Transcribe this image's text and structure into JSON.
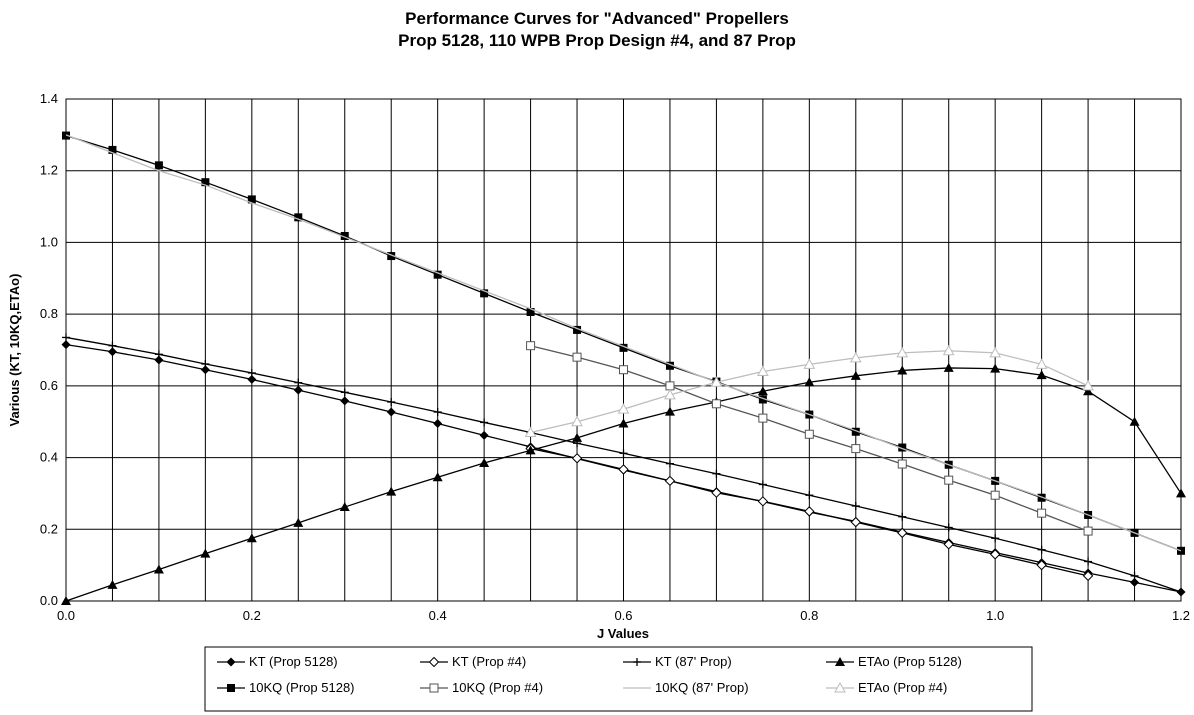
{
  "chart_data": {
    "type": "line",
    "title": "Performance Curves for \"Advanced\" Propellers",
    "subtitle": "Prop 5128, 110 WPB Prop Design #4, and 87 Prop",
    "xlabel": "J Values",
    "ylabel": "Various (KT, 10KQ,ETAo)",
    "xlim": [
      0,
      1.2
    ],
    "ylim": [
      0,
      1.4
    ],
    "x_ticks": [
      "0.0",
      "0.2",
      "0.4",
      "0.6",
      "0.8",
      "1.0",
      "1.2"
    ],
    "y_ticks": [
      "0.0",
      "0.2",
      "0.4",
      "0.6",
      "0.8",
      "1.0",
      "1.2",
      "1.4"
    ],
    "grid": true,
    "legend_position": "bottom",
    "series": [
      {
        "name": "KT (Prop 5128)",
        "color": "#000000",
        "marker": "diamond-filled",
        "line": "solid",
        "x": [
          0,
          0.05,
          0.1,
          0.15,
          0.2,
          0.25,
          0.3,
          0.35,
          0.4,
          0.45,
          0.5,
          0.55,
          0.6,
          0.65,
          0.7,
          0.75,
          0.8,
          0.85,
          0.9,
          0.95,
          1.0,
          1.05,
          1.1,
          1.15,
          1.2
        ],
        "y": [
          0.715,
          0.695,
          0.672,
          0.645,
          0.618,
          0.588,
          0.558,
          0.527,
          0.495,
          0.462,
          0.43,
          0.397,
          0.365,
          0.335,
          0.305,
          0.277,
          0.248,
          0.222,
          0.192,
          0.163,
          0.135,
          0.107,
          0.078,
          0.052,
          0.025
        ]
      },
      {
        "name": "KT (Prop #4)",
        "color": "#000000",
        "marker": "diamond-open",
        "line": "solid",
        "x": [
          0.5,
          0.55,
          0.6,
          0.65,
          0.7,
          0.75,
          0.8,
          0.85,
          0.9,
          0.95,
          1.0,
          1.05,
          1.1
        ],
        "y": [
          0.425,
          0.398,
          0.367,
          0.335,
          0.302,
          0.278,
          0.25,
          0.22,
          0.19,
          0.158,
          0.13,
          0.1,
          0.07
        ]
      },
      {
        "name": "KT (87' Prop)",
        "color": "#000000",
        "marker": "plus",
        "line": "solid",
        "x": [
          0,
          0.05,
          0.1,
          0.15,
          0.2,
          0.25,
          0.3,
          0.35,
          0.4,
          0.45,
          0.5,
          0.55,
          0.6,
          0.65,
          0.7,
          0.75,
          0.8,
          0.85,
          0.9,
          0.95,
          1.0,
          1.05,
          1.1,
          1.15,
          1.2
        ],
        "y": [
          0.735,
          0.712,
          0.688,
          0.661,
          0.636,
          0.609,
          0.582,
          0.555,
          0.527,
          0.498,
          0.47,
          0.44,
          0.412,
          0.383,
          0.355,
          0.325,
          0.295,
          0.265,
          0.235,
          0.205,
          0.175,
          0.143,
          0.11,
          0.07,
          0.025
        ]
      },
      {
        "name": "ETAo (Prop 5128)",
        "color": "#000000",
        "marker": "triangle-filled",
        "line": "solid",
        "x": [
          0,
          0.05,
          0.1,
          0.15,
          0.2,
          0.25,
          0.3,
          0.35,
          0.4,
          0.45,
          0.5,
          0.55,
          0.6,
          0.65,
          0.7,
          0.75,
          0.8,
          0.85,
          0.9,
          0.95,
          1.0,
          1.05,
          1.1,
          1.15,
          1.2
        ],
        "y": [
          0.0,
          0.045,
          0.088,
          0.132,
          0.175,
          0.218,
          0.262,
          0.305,
          0.345,
          0.385,
          0.42,
          0.455,
          0.495,
          0.528,
          0.555,
          0.585,
          0.61,
          0.628,
          0.643,
          0.65,
          0.648,
          0.63,
          0.585,
          0.5,
          0.3
        ]
      },
      {
        "name": "10KQ (Prop 5128)",
        "color": "#000000",
        "marker": "square-filled",
        "line": "solid",
        "x": [
          0,
          0.05,
          0.1,
          0.15,
          0.2,
          0.25,
          0.3,
          0.35,
          0.4,
          0.45,
          0.5,
          0.55,
          0.6,
          0.65,
          0.7,
          0.75,
          0.8,
          0.85,
          0.9,
          0.95,
          1.0,
          1.05,
          1.1,
          1.15,
          1.2
        ],
        "y": [
          1.298,
          1.258,
          1.215,
          1.168,
          1.12,
          1.07,
          1.018,
          0.962,
          0.91,
          0.858,
          0.806,
          0.756,
          0.706,
          0.656,
          0.612,
          0.562,
          0.52,
          0.472,
          0.428,
          0.38,
          0.335,
          0.288,
          0.24,
          0.19,
          0.14
        ]
      },
      {
        "name": "10KQ (Prop #4)",
        "color": "#555555",
        "marker": "square-open",
        "line": "solid",
        "x": [
          0.5,
          0.55,
          0.6,
          0.65,
          0.7,
          0.75,
          0.8,
          0.85,
          0.9,
          0.95,
          1.0,
          1.05,
          1.1
        ],
        "y": [
          0.712,
          0.68,
          0.645,
          0.6,
          0.55,
          0.51,
          0.465,
          0.425,
          0.382,
          0.337,
          0.295,
          0.245,
          0.195
        ]
      },
      {
        "name": "10KQ (87' Prop)",
        "color": "#bdbdbd",
        "marker": "none",
        "line": "solid",
        "x": [
          0,
          0.05,
          0.1,
          0.15,
          0.2,
          0.25,
          0.3,
          0.35,
          0.4,
          0.45,
          0.5,
          0.55,
          0.6,
          0.65,
          0.7,
          0.75,
          0.8,
          0.85,
          0.9,
          0.95,
          1.0,
          1.05,
          1.1,
          1.15,
          1.2
        ],
        "y": [
          1.3,
          1.25,
          1.2,
          1.16,
          1.11,
          1.065,
          1.015,
          0.965,
          0.915,
          0.865,
          0.815,
          0.76,
          0.71,
          0.66,
          0.61,
          0.565,
          0.52,
          0.475,
          0.425,
          0.38,
          0.335,
          0.29,
          0.24,
          0.19,
          0.14
        ]
      },
      {
        "name": "ETAo (Prop #4)",
        "color": "#bdbdbd",
        "marker": "triangle-open",
        "line": "solid",
        "x": [
          0.5,
          0.55,
          0.6,
          0.65,
          0.7,
          0.75,
          0.8,
          0.85,
          0.9,
          0.95,
          1.0,
          1.05,
          1.1
        ],
        "y": [
          0.47,
          0.5,
          0.535,
          0.575,
          0.61,
          0.64,
          0.66,
          0.678,
          0.692,
          0.698,
          0.692,
          0.66,
          0.6
        ]
      }
    ]
  }
}
